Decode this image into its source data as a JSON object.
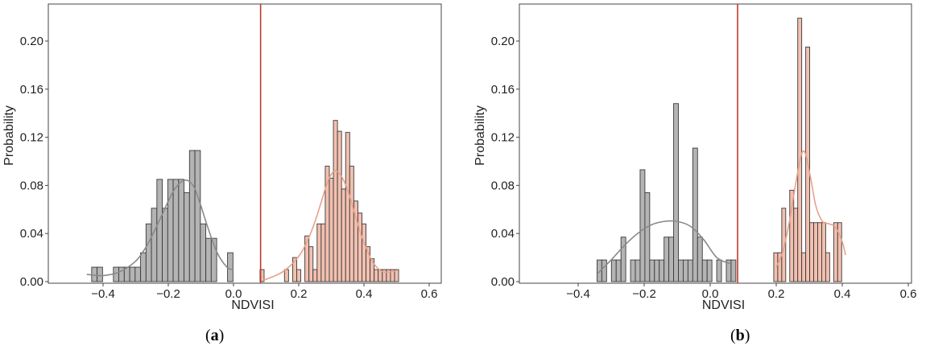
{
  "chart_data": [
    {
      "type": "bar",
      "caption": "a",
      "xlabel": "NDVISI",
      "ylabel": "Probability",
      "xlim": [
        -0.5,
        0.6
      ],
      "ylim": [
        0,
        0.235
      ],
      "xticks": [
        "−0.4",
        "−0.2",
        "0.0",
        "0.2",
        "0.4",
        "0.6"
      ],
      "yticks": [
        "0.00",
        "0.04",
        "0.08",
        "0.12",
        "0.16",
        "0.20"
      ],
      "threshold": 0.083,
      "series": [
        {
          "color": "#b4b4b4",
          "bar_width": 0.0167,
          "bins": [
            -0.435,
            -0.4183,
            -0.4017,
            -0.385,
            -0.3683,
            -0.3517,
            -0.335,
            -0.3183,
            -0.3017,
            -0.285,
            -0.2683,
            -0.2517,
            -0.235,
            -0.2183,
            -0.2017,
            -0.185,
            -0.1683,
            -0.1517,
            -0.135,
            -0.1183,
            -0.1017,
            -0.085,
            -0.0683,
            -0.0517,
            -0.035,
            -0.0183
          ],
          "values": [
            0.012,
            0.012,
            0.0,
            0.0,
            0.012,
            0.012,
            0.012,
            0.012,
            0.012,
            0.024,
            0.048,
            0.061,
            0.085,
            0.061,
            0.085,
            0.085,
            0.085,
            0.074,
            0.109,
            0.109,
            0.048,
            0.036,
            0.036,
            0.0,
            0.0,
            0.024
          ],
          "kde_x": [
            -0.45,
            -0.4,
            -0.35,
            -0.3,
            -0.27,
            -0.25,
            -0.22,
            -0.2,
            -0.18,
            -0.16,
            -0.14,
            -0.12,
            -0.1,
            -0.08,
            -0.05,
            -0.02,
            0.0
          ],
          "kde_y": [
            0.006,
            0.005,
            0.008,
            0.017,
            0.028,
            0.038,
            0.055,
            0.067,
            0.077,
            0.083,
            0.084,
            0.078,
            0.063,
            0.046,
            0.024,
            0.012,
            0.01
          ]
        },
        {
          "color": "#f2c0b0",
          "bar_width": 0.0125,
          "bins": [
            0.0813,
            0.0938,
            0.1063,
            0.1188,
            0.1313,
            0.1438,
            0.1563,
            0.1688,
            0.1813,
            0.1938,
            0.2063,
            0.2188,
            0.2313,
            0.2438,
            0.2563,
            0.2688,
            0.2813,
            0.2938,
            0.3063,
            0.3188,
            0.3313,
            0.3438,
            0.3563,
            0.3688,
            0.3813,
            0.3938,
            0.4063,
            0.4188,
            0.4313,
            0.4438,
            0.4563,
            0.4688,
            0.4813,
            0.4938
          ],
          "values": [
            0.01,
            0.0,
            0.0,
            0.0,
            0.0,
            0.0,
            0.01,
            0.0,
            0.02,
            0.01,
            0.0,
            0.038,
            0.029,
            0.01,
            0.048,
            0.048,
            0.096,
            0.086,
            0.134,
            0.125,
            0.077,
            0.124,
            0.096,
            0.067,
            0.057,
            0.048,
            0.029,
            0.019,
            0.01,
            0.01,
            0.01,
            0.01,
            0.01,
            0.01
          ],
          "kde_x": [
            0.09,
            0.15,
            0.2,
            0.23,
            0.25,
            0.27,
            0.29,
            0.31,
            0.33,
            0.35,
            0.37,
            0.39,
            0.41,
            0.43,
            0.46,
            0.5
          ],
          "kde_y": [
            0.001,
            0.008,
            0.021,
            0.036,
            0.05,
            0.067,
            0.084,
            0.092,
            0.088,
            0.076,
            0.058,
            0.04,
            0.026,
            0.015,
            0.008,
            0.009
          ]
        }
      ]
    },
    {
      "type": "bar",
      "caption": "b",
      "xlabel": "NDVISI",
      "ylabel": "Probability",
      "xlim": [
        -0.5,
        0.6
      ],
      "ylim": [
        0,
        0.235
      ],
      "xticks": [
        "−0.4",
        "−0.2",
        "0.0",
        "0.2",
        "0.4",
        "0.6"
      ],
      "yticks": [
        "0.00",
        "0.04",
        "0.08",
        "0.12",
        "0.16",
        "0.20"
      ],
      "threshold": 0.083,
      "series": [
        {
          "color": "#b4b4b4",
          "bar_width": 0.0145,
          "bins": [
            -0.3428,
            -0.3283,
            -0.3138,
            -0.2993,
            -0.2848,
            -0.2703,
            -0.2558,
            -0.2413,
            -0.2268,
            -0.2123,
            -0.1978,
            -0.1833,
            -0.1688,
            -0.1543,
            -0.1398,
            -0.1253,
            -0.1108,
            -0.0963,
            -0.0818,
            -0.0673,
            -0.0528,
            -0.0383,
            -0.0238,
            -0.0093,
            0.0052,
            0.0197,
            0.0342,
            0.0487,
            0.0632
          ],
          "values": [
            0.018,
            0.018,
            0.0,
            0.018,
            0.018,
            0.037,
            0.0,
            0.018,
            0.018,
            0.093,
            0.074,
            0.018,
            0.018,
            0.018,
            0.037,
            0.037,
            0.148,
            0.018,
            0.018,
            0.018,
            0.111,
            0.037,
            0.018,
            0.018,
            0.0,
            0.018,
            0.0,
            0.018,
            0.018
          ],
          "kde_x": [
            -0.34,
            -0.3,
            -0.26,
            -0.22,
            -0.18,
            -0.14,
            -0.1,
            -0.06,
            -0.02,
            0.02,
            0.06
          ],
          "kde_y": [
            0.007,
            0.018,
            0.03,
            0.04,
            0.047,
            0.05,
            0.05,
            0.046,
            0.035,
            0.02,
            0.015
          ]
        },
        {
          "color": "#f2c0b0",
          "bar_width": 0.0121,
          "bins": [
            0.1925,
            0.2046,
            0.2167,
            0.2288,
            0.2409,
            0.253,
            0.2651,
            0.2772,
            0.2893,
            0.3014,
            0.3135,
            0.3256,
            0.3377,
            0.3498,
            0.3619,
            0.374,
            0.3861,
            0.3982,
            0.4103
          ],
          "values": [
            0.024,
            0.024,
            0.061,
            0.0,
            0.076,
            0.061,
            0.219,
            0.024,
            0.195,
            0.049,
            0.049,
            0.049,
            0.049,
            0.024,
            0.0,
            0.049,
            0.049,
            0.0,
            0.0
          ],
          "kde_x": [
            0.2,
            0.22,
            0.24,
            0.255,
            0.27,
            0.28,
            0.29,
            0.305,
            0.32,
            0.34,
            0.36,
            0.38,
            0.4,
            0.41
          ],
          "kde_y": [
            0.012,
            0.025,
            0.05,
            0.075,
            0.098,
            0.108,
            0.105,
            0.085,
            0.063,
            0.05,
            0.048,
            0.045,
            0.033,
            0.022
          ]
        }
      ]
    }
  ]
}
